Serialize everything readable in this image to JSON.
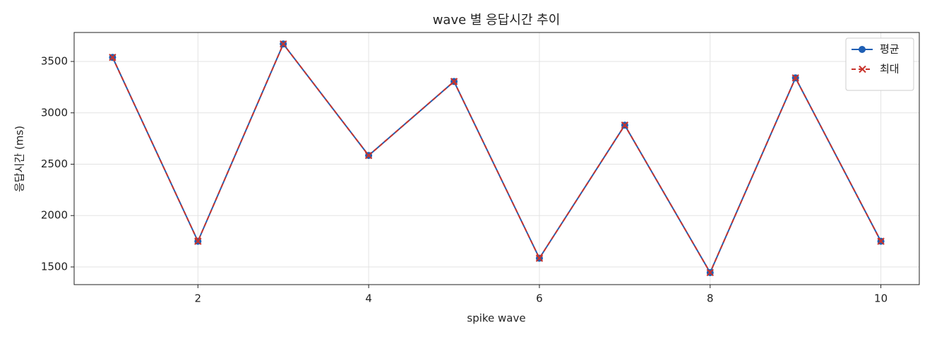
{
  "chart_data": {
    "type": "line",
    "title": "wave 별 응답시간 추이",
    "xlabel": "spike wave",
    "ylabel": "응답시간 (ms)",
    "x": [
      1,
      2,
      3,
      4,
      5,
      6,
      7,
      8,
      9,
      10
    ],
    "series": [
      {
        "name": "평균",
        "color": "#1f5fb4",
        "marker": "circle",
        "dash": "solid",
        "values": [
          3540,
          1750,
          3670,
          2585,
          3305,
          1585,
          2880,
          1445,
          3340,
          1750
        ]
      },
      {
        "name": "최대",
        "color": "#c8332c",
        "marker": "x",
        "dash": "dashed",
        "values": [
          3540,
          1750,
          3670,
          2585,
          3305,
          1585,
          2880,
          1445,
          3340,
          1750
        ]
      }
    ],
    "xlim": [
      0.55,
      10.45
    ],
    "xticks": [
      2,
      4,
      6,
      8,
      10
    ],
    "ylim": [
      1328,
      3782
    ],
    "yticks": [
      1500,
      2000,
      2500,
      3000,
      3500
    ],
    "grid": true,
    "legend": "upper right"
  }
}
